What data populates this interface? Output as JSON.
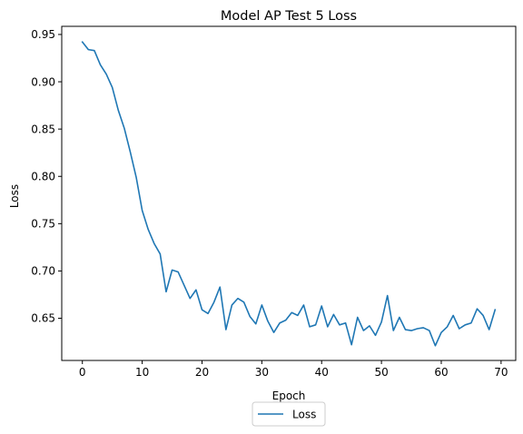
{
  "chart_data": {
    "type": "line",
    "title": "Model AP Test 5 Loss",
    "xlabel": "Epoch",
    "ylabel": "Loss",
    "xlim": [
      -3.45,
      72.45
    ],
    "ylim": [
      0.6054,
      0.9586
    ],
    "xticks": [
      0,
      10,
      20,
      30,
      40,
      50,
      60,
      70
    ],
    "yticks": [
      0.65,
      0.7,
      0.75,
      0.8,
      0.85,
      0.9,
      0.95
    ],
    "xtick_labels": [
      "0",
      "10",
      "20",
      "30",
      "40",
      "50",
      "60",
      "70"
    ],
    "ytick_labels": [
      "0.65",
      "0.70",
      "0.75",
      "0.80",
      "0.85",
      "0.90",
      "0.95"
    ],
    "grid": false,
    "legend": {
      "position": "bottom-center, below axes",
      "entries": [
        "Loss"
      ]
    },
    "series": [
      {
        "name": "Loss",
        "color": "#1f77b4",
        "x": [
          0,
          1,
          2,
          3,
          4,
          5,
          6,
          7,
          8,
          9,
          10,
          11,
          12,
          13,
          14,
          15,
          16,
          17,
          18,
          19,
          20,
          21,
          22,
          23,
          24,
          25,
          26,
          27,
          28,
          29,
          30,
          31,
          32,
          33,
          34,
          35,
          36,
          37,
          38,
          39,
          40,
          41,
          42,
          43,
          44,
          45,
          46,
          47,
          48,
          49,
          50,
          51,
          52,
          53,
          54,
          55,
          56,
          57,
          58,
          59,
          60,
          61,
          62,
          63,
          64,
          65,
          66,
          67,
          68,
          69
        ],
        "values": [
          0.942,
          0.934,
          0.933,
          0.918,
          0.908,
          0.894,
          0.87,
          0.851,
          0.826,
          0.799,
          0.764,
          0.744,
          0.729,
          0.718,
          0.678,
          0.701,
          0.699,
          0.685,
          0.671,
          0.68,
          0.659,
          0.655,
          0.667,
          0.683,
          0.638,
          0.664,
          0.671,
          0.667,
          0.652,
          0.644,
          0.664,
          0.647,
          0.635,
          0.645,
          0.648,
          0.656,
          0.653,
          0.664,
          0.641,
          0.643,
          0.663,
          0.641,
          0.654,
          0.643,
          0.645,
          0.622,
          0.651,
          0.637,
          0.642,
          0.632,
          0.646,
          0.674,
          0.637,
          0.651,
          0.638,
          0.637,
          0.639,
          0.64,
          0.637,
          0.621,
          0.635,
          0.641,
          0.653,
          0.639,
          0.643,
          0.645,
          0.66,
          0.653,
          0.638,
          0.659
        ]
      }
    ]
  }
}
